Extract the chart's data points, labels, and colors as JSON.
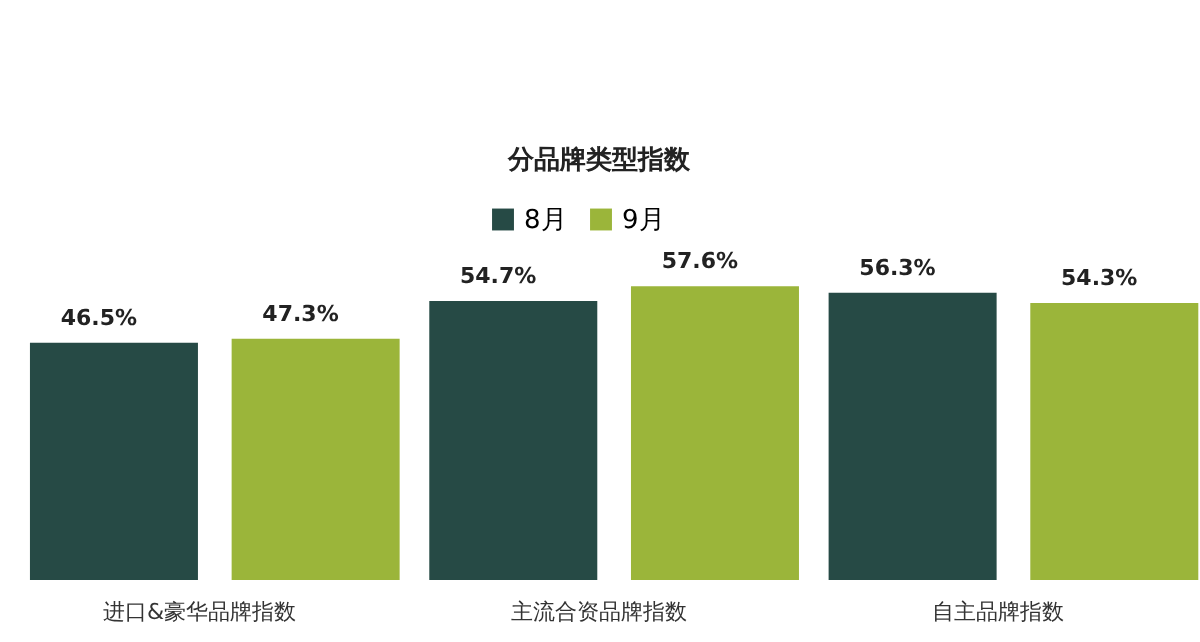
{
  "chart_data": {
    "type": "bar",
    "title": "分品牌类型指数",
    "categories": [
      "进口&豪华品牌指数",
      "主流合资品牌指数",
      "自主品牌指数"
    ],
    "series": [
      {
        "name": "8月",
        "color": "#264a45",
        "values": [
          46.5,
          54.7,
          56.3
        ],
        "value_labels": [
          "46.5%",
          "54.7%",
          "56.3%"
        ]
      },
      {
        "name": "9月",
        "color": "#9bb53a",
        "values": [
          47.3,
          57.6,
          54.3
        ],
        "value_labels": [
          "47.3%",
          "57.6%",
          "54.3%"
        ]
      }
    ],
    "legend": "top"
  }
}
